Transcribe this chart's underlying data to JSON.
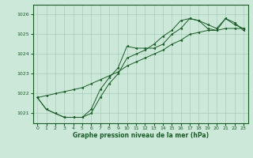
{
  "title": "Graphe pression niveau de la mer (hPa)",
  "bg_color": "#cce8d8",
  "grid_color": "#aaccbb",
  "line_color": "#1a5c28",
  "ylim": [
    1020.5,
    1026.5
  ],
  "xlim": [
    -0.5,
    23.5
  ],
  "yticks": [
    1021,
    1022,
    1023,
    1024,
    1025,
    1026
  ],
  "xticks": [
    0,
    1,
    2,
    3,
    4,
    5,
    6,
    7,
    8,
    9,
    10,
    11,
    12,
    13,
    14,
    15,
    16,
    17,
    18,
    19,
    20,
    21,
    22,
    23
  ],
  "series": [
    {
      "x": [
        0,
        1,
        2,
        3,
        4,
        5,
        6,
        7,
        8,
        9,
        10,
        11,
        12,
        13,
        14,
        15,
        16,
        17,
        18,
        19,
        20,
        21,
        22,
        23
      ],
      "y": [
        1021.8,
        1021.9,
        1022.0,
        1022.1,
        1022.2,
        1022.3,
        1022.5,
        1022.7,
        1022.9,
        1023.1,
        1023.4,
        1023.6,
        1023.8,
        1024.0,
        1024.2,
        1024.5,
        1024.7,
        1025.0,
        1025.1,
        1025.2,
        1025.2,
        1025.3,
        1025.3,
        1025.3
      ]
    },
    {
      "x": [
        0,
        1,
        2,
        3,
        4,
        5,
        6,
        7,
        8,
        9,
        10,
        11,
        12,
        13,
        14,
        15,
        16,
        17,
        18,
        19,
        20,
        21,
        22,
        23
      ],
      "y": [
        1021.8,
        1021.2,
        1021.0,
        1020.8,
        1020.8,
        1020.8,
        1021.2,
        1022.2,
        1022.8,
        1023.3,
        1024.4,
        1024.3,
        1024.3,
        1024.3,
        1024.5,
        1025.0,
        1025.3,
        1025.8,
        1025.7,
        1025.3,
        1025.2,
        1025.8,
        1025.5,
        1025.3
      ]
    },
    {
      "x": [
        0,
        1,
        2,
        3,
        4,
        5,
        6,
        7,
        8,
        9,
        10,
        11,
        12,
        13,
        14,
        15,
        16,
        17,
        18,
        19,
        20,
        21,
        22,
        23
      ],
      "y": [
        1021.8,
        1021.2,
        1021.0,
        1020.8,
        1020.8,
        1020.8,
        1021.0,
        1021.8,
        1022.5,
        1023.0,
        1023.8,
        1024.0,
        1024.2,
        1024.5,
        1024.9,
        1025.2,
        1025.7,
        1025.8,
        1025.7,
        1025.5,
        1025.3,
        1025.8,
        1025.6,
        1025.2
      ]
    }
  ]
}
